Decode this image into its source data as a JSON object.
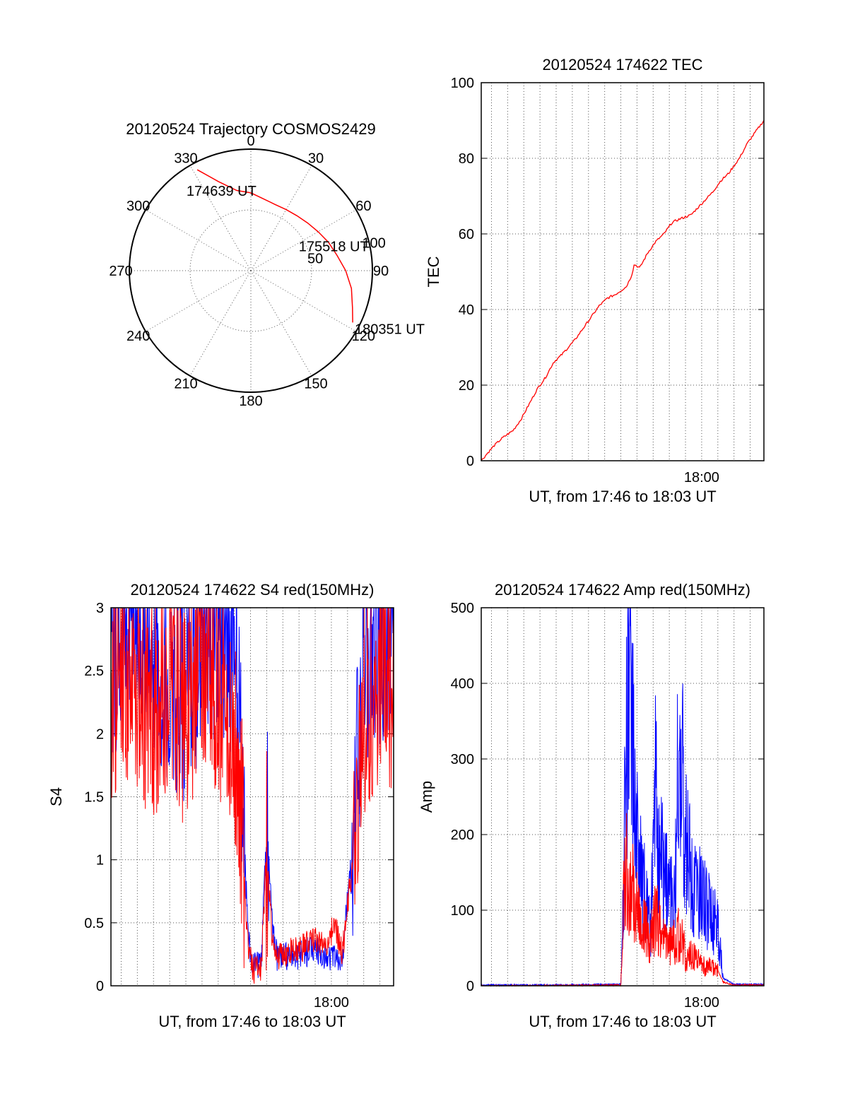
{
  "chart_data": [
    {
      "type": "polar",
      "title": "20120524 Trajectory COSMOS2429",
      "angle_labels": [
        "0",
        "30",
        "60",
        "90",
        "120",
        "150",
        "180",
        "210",
        "240",
        "270",
        "300",
        "330"
      ],
      "radius_labels": [
        "50",
        "100"
      ],
      "rlim": [
        0,
        100
      ],
      "grid": true,
      "series": [
        {
          "color": "#ff0000",
          "points": [
            [
              332,
              94
            ],
            [
              340,
              78
            ],
            [
              350,
              67
            ],
            [
              0,
              64
            ],
            [
              10,
              60
            ],
            [
              20,
              58
            ],
            [
              30,
              58
            ],
            [
              40,
              59
            ],
            [
              50,
              61
            ],
            [
              60,
              64
            ],
            [
              70,
              68
            ],
            [
              80,
              72
            ],
            [
              90,
              78
            ],
            [
              100,
              84
            ],
            [
              110,
              89
            ],
            [
              117,
              94
            ]
          ]
        }
      ],
      "annotations": [
        {
          "text": "174639 UT",
          "az": 328,
          "r": 78
        },
        {
          "text": "175518 UT",
          "az": 68,
          "r": 55
        },
        {
          "text": "180351 UT",
          "az": 116,
          "r": 108
        }
      ]
    },
    {
      "type": "line",
      "title": "20120524 174622 TEC",
      "ylabel": "TEC",
      "xlabel": "UT, from 17:46 to 18:03 UT",
      "xlim": [
        "17:46:22",
        "18:03:51"
      ],
      "ylim": [
        0,
        100
      ],
      "yticks": [
        "0",
        "20",
        "40",
        "60",
        "80",
        "100"
      ],
      "xticks": [
        {
          "label": "18:00",
          "t": "18:00:00"
        }
      ],
      "grid": true,
      "series": [
        {
          "color": "#ff0000",
          "x": [
            "17:46:22",
            "17:46:45",
            "17:47:10",
            "17:47:40",
            "17:48:20",
            "17:48:50",
            "17:49:20",
            "17:49:50",
            "17:50:20",
            "17:50:50",
            "17:51:20",
            "17:51:45",
            "17:52:10",
            "17:52:40",
            "17:53:10",
            "17:53:40",
            "17:54:10",
            "17:54:40",
            "17:55:20",
            "17:55:40",
            "17:55:50",
            "17:56:10",
            "17:56:40",
            "17:57:10",
            "17:57:40",
            "17:58:10",
            "17:58:40",
            "17:59:20",
            "18:00:00",
            "18:00:40",
            "18:01:10",
            "18:01:40",
            "18:01:50",
            "18:02:20",
            "18:02:50",
            "18:03:20",
            "18:03:51"
          ],
          "y": [
            0,
            2,
            4,
            6,
            8,
            11,
            15,
            19,
            22,
            26,
            28,
            30,
            32,
            35,
            38,
            41,
            43,
            44,
            46,
            49,
            52,
            51,
            55,
            58,
            60,
            63,
            64,
            65,
            68,
            71,
            74,
            76,
            77,
            80,
            84,
            87,
            90
          ]
        }
      ]
    },
    {
      "type": "line",
      "title": "20120524 174622 S4 red(150MHz)",
      "ylabel": "S4",
      "xlabel": "UT, from 17:46 to 18:03 UT",
      "xlim": [
        "17:46:22",
        "18:03:51"
      ],
      "ylim": [
        0,
        3
      ],
      "yticks": [
        "0",
        "0.5",
        "1",
        "1.5",
        "2",
        "2.5",
        "3"
      ],
      "xticks": [
        {
          "label": "18:00",
          "t": "18:00:00"
        }
      ],
      "grid": true,
      "series": [
        {
          "color": "#0000ff",
          "x": [
            "17:46:22",
            "17:47:00",
            "17:48:00",
            "17:49:00",
            "17:50:00",
            "17:51:00",
            "17:52:00",
            "17:53:00",
            "17:54:00",
            "17:54:30",
            "17:54:50",
            "17:55:10",
            "17:55:40",
            "17:56:00",
            "17:56:20",
            "17:56:40",
            "17:57:00",
            "17:58:00",
            "17:59:00",
            "17:59:40",
            "18:00:10",
            "18:00:40",
            "18:01:20",
            "18:02:00",
            "18:03:00",
            "18:03:51"
          ],
          "y": [
            2.6,
            2.8,
            2.9,
            2.7,
            2.5,
            2.3,
            2.7,
            2.9,
            2.6,
            1.6,
            0.4,
            0.15,
            0.2,
            1.3,
            0.5,
            0.2,
            0.22,
            0.25,
            0.28,
            0.25,
            0.22,
            0.2,
            1.2,
            2.6,
            2.8,
            2.7
          ]
        },
        {
          "color": "#ff0000",
          "x": [
            "17:46:22",
            "17:47:00",
            "17:48:00",
            "17:49:00",
            "17:50:00",
            "17:51:00",
            "17:52:00",
            "17:53:00",
            "17:54:00",
            "17:54:30",
            "17:54:50",
            "17:55:10",
            "17:55:40",
            "17:56:00",
            "17:56:20",
            "17:56:40",
            "17:57:00",
            "17:58:00",
            "17:59:00",
            "17:59:40",
            "18:00:10",
            "18:00:40",
            "18:01:20",
            "18:02:00",
            "18:03:00",
            "18:03:51"
          ],
          "y": [
            2.3,
            2.6,
            2.4,
            2.2,
            2.5,
            2.1,
            2.6,
            2.4,
            2.0,
            1.3,
            0.3,
            0.1,
            0.15,
            1.1,
            0.4,
            0.2,
            0.25,
            0.3,
            0.35,
            0.3,
            0.5,
            0.25,
            1.0,
            2.2,
            2.5,
            2.4
          ]
        }
      ]
    },
    {
      "type": "line",
      "title": "20120524 174622 Amp red(150MHz)",
      "ylabel": "Amp",
      "xlabel": "UT, from 17:46 to 18:03 UT",
      "xlim": [
        "17:46:22",
        "18:03:51"
      ],
      "ylim": [
        0,
        500
      ],
      "yticks": [
        "0",
        "100",
        "200",
        "300",
        "400",
        "500"
      ],
      "xticks": [
        {
          "label": "18:00",
          "t": "18:00:00"
        }
      ],
      "grid": true,
      "series": [
        {
          "color": "#0000ff",
          "x": [
            "17:46:22",
            "17:50:00",
            "17:55:00",
            "17:55:10",
            "17:55:20",
            "17:55:35",
            "17:55:50",
            "17:56:00",
            "17:56:10",
            "17:56:25",
            "17:56:40",
            "17:56:50",
            "17:57:00",
            "17:57:10",
            "17:57:20",
            "17:57:40",
            "17:58:00",
            "17:58:20",
            "17:58:30",
            "17:58:40",
            "17:58:50",
            "17:59:00",
            "17:59:20",
            "17:59:40",
            "18:00:00",
            "18:00:20",
            "18:00:40",
            "18:01:00",
            "18:01:20",
            "18:02:00",
            "18:03:51"
          ],
          "y": [
            1,
            1,
            2,
            120,
            330,
            460,
            250,
            210,
            150,
            130,
            90,
            70,
            200,
            260,
            180,
            150,
            120,
            110,
            250,
            320,
            260,
            200,
            150,
            130,
            120,
            100,
            90,
            80,
            10,
            2,
            2
          ]
        },
        {
          "color": "#ff0000",
          "x": [
            "17:46:22",
            "17:50:00",
            "17:55:00",
            "17:55:10",
            "17:55:20",
            "17:55:35",
            "17:55:50",
            "17:56:00",
            "17:56:10",
            "17:56:25",
            "17:56:40",
            "17:56:50",
            "17:57:00",
            "17:57:10",
            "17:57:20",
            "17:57:40",
            "17:58:00",
            "17:58:20",
            "17:58:30",
            "17:58:40",
            "17:58:50",
            "17:59:00",
            "17:59:20",
            "17:59:40",
            "18:00:00",
            "18:00:20",
            "18:00:40",
            "18:01:00",
            "18:01:20",
            "18:02:00",
            "18:03:51"
          ],
          "y": [
            0,
            0,
            1,
            110,
            150,
            140,
            120,
            100,
            90,
            80,
            70,
            60,
            80,
            90,
            85,
            60,
            50,
            60,
            70,
            65,
            55,
            40,
            40,
            35,
            30,
            25,
            25,
            20,
            5,
            1,
            1
          ]
        }
      ]
    }
  ]
}
